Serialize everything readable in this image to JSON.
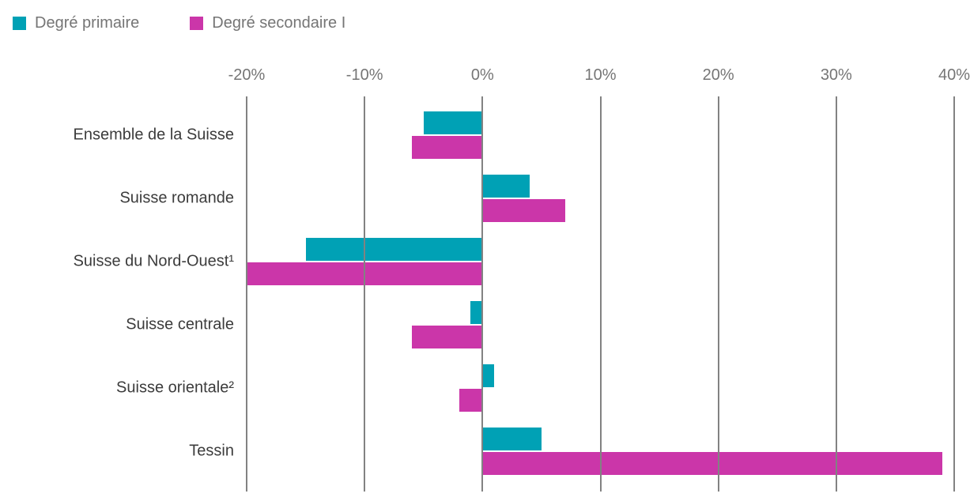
{
  "chart_data": {
    "type": "bar",
    "orientation": "horizontal",
    "title": "",
    "xlabel": "",
    "ylabel": "",
    "categories": [
      "Ensemble de la Suisse",
      "Suisse romande",
      "Suisse du Nord-Ouest¹",
      "Suisse centrale",
      "Suisse orientale²",
      "Tessin"
    ],
    "series": [
      {
        "name": "Degré primaire",
        "color": "#00a1b5",
        "values": [
          -5,
          4,
          -15,
          -1,
          1,
          5
        ]
      },
      {
        "name": "Degré secondaire I",
        "color": "#cb36a9",
        "values": [
          -6,
          7,
          -20,
          -6,
          -2,
          39
        ]
      }
    ],
    "xlim": [
      -20,
      40
    ],
    "xticks": [
      {
        "value": -20,
        "label": "-20%"
      },
      {
        "value": -10,
        "label": "-10%"
      },
      {
        "value": 0,
        "label": "0%"
      },
      {
        "value": 10,
        "label": "10%"
      },
      {
        "value": 20,
        "label": "20%"
      },
      {
        "value": 30,
        "label": "30%"
      },
      {
        "value": 40,
        "label": "40%"
      }
    ],
    "grid": "vertical-on-top",
    "legend_position": "top-left"
  },
  "colors": {
    "background": "#ffffff",
    "gridline": "#828282",
    "axis_text": "#757575",
    "category_text": "#3c3c3c",
    "legend_text": "#757575"
  }
}
